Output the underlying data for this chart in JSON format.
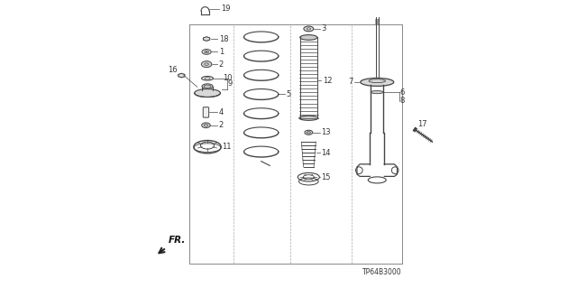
{
  "bg_color": "#ffffff",
  "line_color": "#444444",
  "text_color": "#333333",
  "diagram_code": "TP64B3000",
  "border": [
    0.155,
    0.085,
    0.895,
    0.915
  ],
  "dividers": [
    0.31,
    0.505,
    0.72
  ]
}
